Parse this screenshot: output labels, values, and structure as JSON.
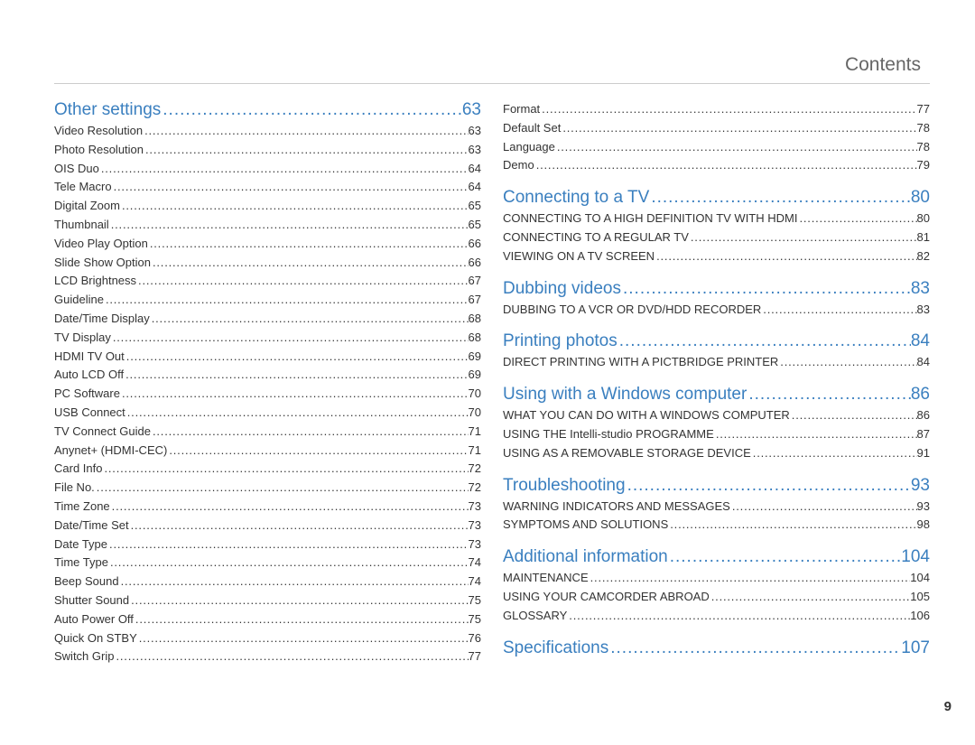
{
  "header": "Contents",
  "page_number": "9",
  "colors": {
    "accent": "#3a7fbf",
    "text": "#333333",
    "header": "#666666",
    "rule": "#cccccc",
    "background": "#ffffff"
  },
  "left": [
    {
      "title": "Other settings",
      "page": "63",
      "items": [
        {
          "label": "Video Resolution",
          "page": "63"
        },
        {
          "label": "Photo Resolution",
          "page": "63"
        },
        {
          "label": "OIS Duo",
          "page": "64"
        },
        {
          "label": "Tele Macro",
          "page": "64"
        },
        {
          "label": "Digital Zoom",
          "page": "65"
        },
        {
          "label": "Thumbnail",
          "page": "65"
        },
        {
          "label": "Video Play Option",
          "page": "66"
        },
        {
          "label": "Slide Show Option",
          "page": "66"
        },
        {
          "label": "LCD Brightness",
          "page": "67"
        },
        {
          "label": "Guideline",
          "page": "67"
        },
        {
          "label": "Date/Time Display",
          "page": "68"
        },
        {
          "label": "TV Display",
          "page": "68"
        },
        {
          "label": "HDMI TV Out",
          "page": "69"
        },
        {
          "label": "Auto LCD Off",
          "page": "69"
        },
        {
          "label": "PC Software",
          "page": "70"
        },
        {
          "label": "USB Connect",
          "page": "70"
        },
        {
          "label": "TV Connect Guide",
          "page": "71"
        },
        {
          "label": "Anynet+ (HDMI-CEC)",
          "page": "71"
        },
        {
          "label": "Card Info",
          "page": "72"
        },
        {
          "label": "File No.",
          "page": "72"
        },
        {
          "label": "Time Zone",
          "page": "73"
        },
        {
          "label": "Date/Time Set",
          "page": "73"
        },
        {
          "label": "Date Type",
          "page": "73"
        },
        {
          "label": "Time Type",
          "page": "74"
        },
        {
          "label": "Beep Sound",
          "page": "74"
        },
        {
          "label": "Shutter Sound",
          "page": "75"
        },
        {
          "label": "Auto Power Off",
          "page": "75"
        },
        {
          "label": "Quick On STBY",
          "page": "76"
        },
        {
          "label": "Switch Grip",
          "page": "77"
        }
      ]
    }
  ],
  "right": [
    {
      "title": null,
      "page": null,
      "continuation": true,
      "items": [
        {
          "label": "Format",
          "page": "77"
        },
        {
          "label": "Default Set",
          "page": "78"
        },
        {
          "label": "Language",
          "page": "78"
        },
        {
          "label": "Demo",
          "page": "79"
        }
      ]
    },
    {
      "title": "Connecting to a TV",
      "page": "80",
      "items": [
        {
          "label": "CONNECTING TO A HIGH DEFINITION TV WITH HDMI",
          "page": "80",
          "upper": true
        },
        {
          "label": "CONNECTING TO A REGULAR TV",
          "page": "81",
          "upper": true
        },
        {
          "label": "VIEWING ON A TV SCREEN",
          "page": "82",
          "upper": true
        }
      ]
    },
    {
      "title": "Dubbing videos",
      "page": "83",
      "items": [
        {
          "label": "DUBBING TO A VCR OR DVD/HDD RECORDER",
          "page": "83",
          "upper": true
        }
      ]
    },
    {
      "title": "Printing photos",
      "page": "84",
      "items": [
        {
          "label": "DIRECT PRINTING WITH A PICTBRIDGE PRINTER",
          "page": "84",
          "upper": true
        }
      ]
    },
    {
      "title": "Using with a Windows computer",
      "page": "86",
      "items": [
        {
          "label": "WHAT YOU CAN DO WITH A WINDOWS COMPUTER",
          "page": "86",
          "upper": true
        },
        {
          "label": "USING THE Intelli-studio PROGRAMME",
          "page": "87",
          "upper": true
        },
        {
          "label": "USING AS A REMOVABLE STORAGE DEVICE",
          "page": "91",
          "upper": true
        }
      ]
    },
    {
      "title": "Troubleshooting",
      "page": "93",
      "items": [
        {
          "label": "WARNING INDICATORS AND MESSAGES",
          "page": "93",
          "upper": true
        },
        {
          "label": "SYMPTOMS AND SOLUTIONS",
          "page": "98",
          "upper": true
        }
      ]
    },
    {
      "title": "Additional information",
      "page": "104",
      "items": [
        {
          "label": "MAINTENANCE",
          "page": "104",
          "upper": true
        },
        {
          "label": "USING YOUR CAMCORDER ABROAD",
          "page": "105",
          "upper": true
        },
        {
          "label": "GLOSSARY",
          "page": "106",
          "upper": true
        }
      ]
    },
    {
      "title": "Specifications",
      "page": "107",
      "items": []
    }
  ]
}
